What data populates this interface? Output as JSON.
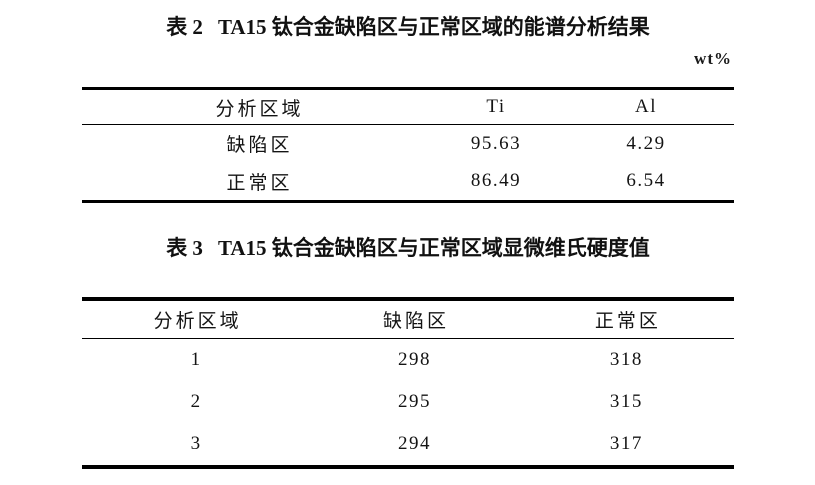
{
  "colors": {
    "background": "#ffffff",
    "text": "#141414",
    "rule": "#000000"
  },
  "table2": {
    "title_label": "表 2",
    "title_text": "TA15 钛合金缺陷区与正常区域的能谱分析结果",
    "unit_label": "wt%",
    "columns": [
      "分析区域",
      "Ti",
      "Al"
    ],
    "rows": [
      [
        "缺陷区",
        "95.63",
        "4.29"
      ],
      [
        "正常区",
        "86.49",
        "6.54"
      ]
    ]
  },
  "table3": {
    "title_label": "表 3",
    "title_text": "TA15 钛合金缺陷区与正常区域显微维氏硬度值",
    "columns": [
      "分析区域",
      "缺陷区",
      "正常区"
    ],
    "rows": [
      [
        "1",
        "298",
        "318"
      ],
      [
        "2",
        "295",
        "315"
      ],
      [
        "3",
        "294",
        "317"
      ]
    ]
  }
}
